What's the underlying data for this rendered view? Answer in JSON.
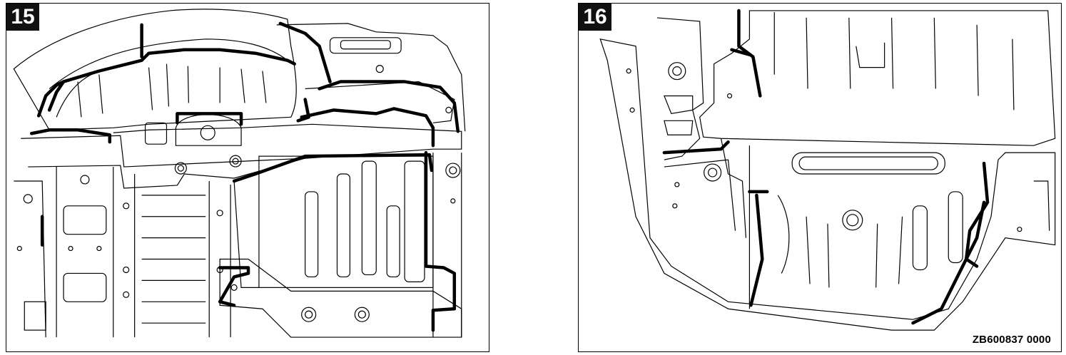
{
  "figures": [
    {
      "number": "15"
    },
    {
      "number": "16",
      "reference_code": "ZB600837 0000"
    }
  ]
}
